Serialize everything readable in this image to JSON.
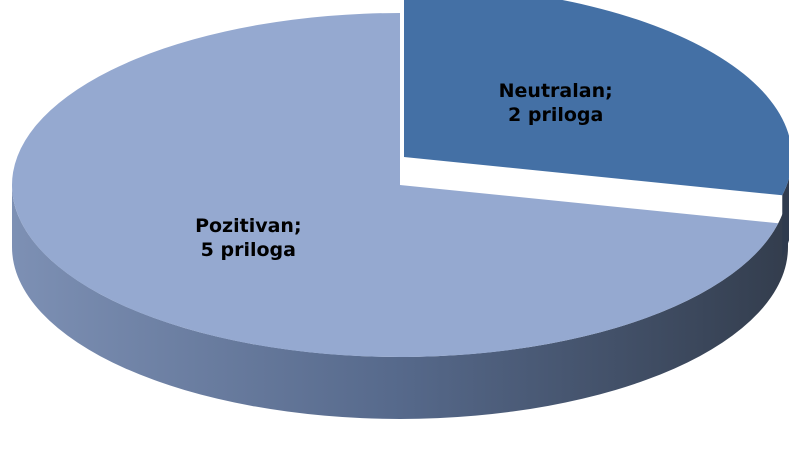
{
  "chart_data": {
    "type": "pie",
    "three_d": true,
    "categories": [
      "Neutralan;",
      "Pozitivan;"
    ],
    "values": [
      2,
      5
    ],
    "value_labels": [
      "2 priloga",
      "5 priloga"
    ],
    "colors": [
      "#4470a5",
      "#95a9d0"
    ]
  }
}
